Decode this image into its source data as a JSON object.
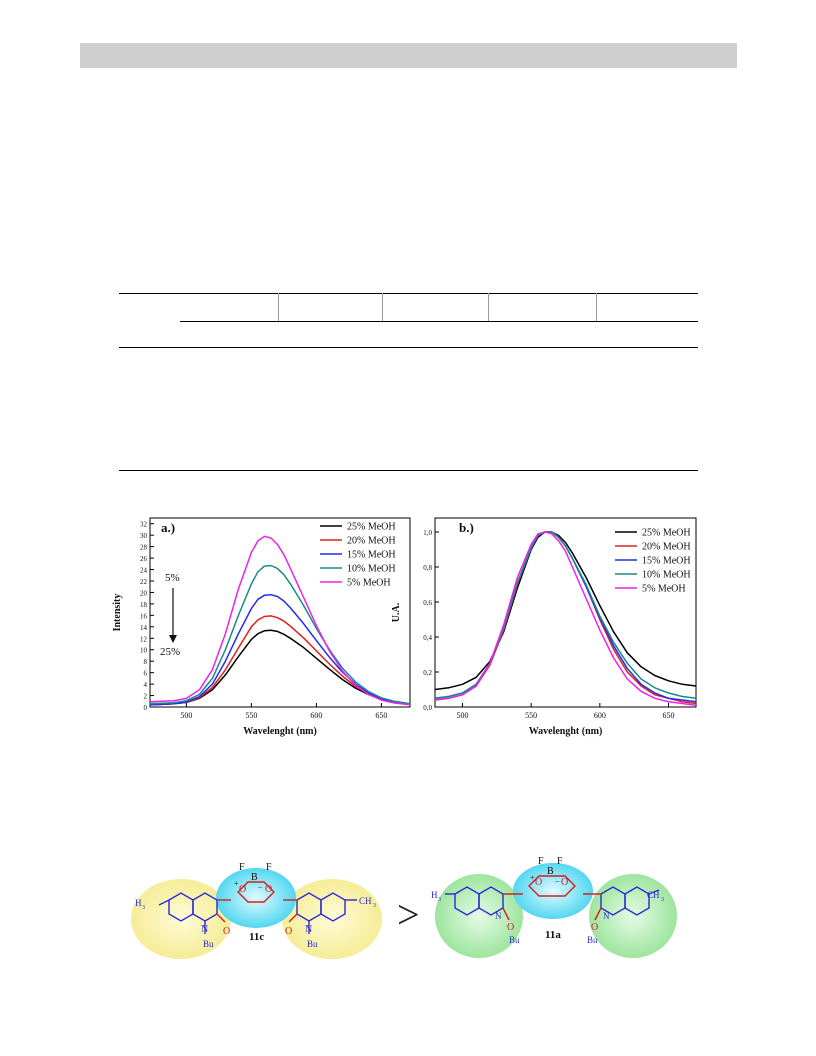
{
  "colors": {
    "header_bar": "#cfcfcf",
    "series": [
      "#000000",
      "#e0201c",
      "#1f2ef0",
      "#1a8a8a",
      "#f020f0"
    ]
  },
  "figure": {
    "panel_a_label": "a.)",
    "panel_b_label": "b.)",
    "arrow_top_label": "5%",
    "arrow_bottom_label": "25%",
    "structure_left_label": "11c",
    "structure_right_label": "11a",
    "comparison_symbol": ">",
    "atom_labels": {
      "F": "F",
      "B": "B",
      "O": "O",
      "N": "N",
      "Bu": "Bu",
      "H3C": "H",
      "CH3": "CH",
      "sub3": "3",
      "plus": "+",
      "minus": "−"
    }
  },
  "chart_data": [
    {
      "type": "line",
      "title": "a.)",
      "xlabel": "Wavelenght (nm)",
      "ylabel": "Intensity",
      "xlim": [
        472,
        672
      ],
      "ylim": [
        0,
        33
      ],
      "xticks": [
        500,
        550,
        600,
        650
      ],
      "yticks": [
        0,
        2,
        4,
        6,
        8,
        10,
        12,
        14,
        16,
        18,
        20,
        22,
        24,
        26,
        28,
        30,
        32
      ],
      "legend_position": "top-right",
      "x": [
        472,
        480,
        490,
        500,
        510,
        520,
        530,
        540,
        550,
        555,
        560,
        565,
        570,
        575,
        580,
        590,
        600,
        610,
        620,
        630,
        640,
        650,
        660,
        672
      ],
      "series": [
        {
          "name": "25% MeOH",
          "values": [
            0.4,
            0.45,
            0.55,
            0.8,
            1.5,
            3.0,
            5.6,
            8.8,
            11.8,
            12.8,
            13.3,
            13.4,
            13.2,
            12.7,
            12.0,
            10.4,
            8.5,
            6.6,
            4.8,
            3.3,
            2.2,
            1.4,
            0.9,
            0.5
          ]
        },
        {
          "name": "20% MeOH",
          "values": [
            0.4,
            0.45,
            0.55,
            0.8,
            1.6,
            3.4,
            6.5,
            10.3,
            14.0,
            15.2,
            15.8,
            15.9,
            15.6,
            15.0,
            14.1,
            12.1,
            9.8,
            7.5,
            5.4,
            3.6,
            2.3,
            1.4,
            0.9,
            0.5
          ]
        },
        {
          "name": "15% MeOH",
          "values": [
            0.4,
            0.45,
            0.55,
            0.85,
            1.8,
            4.0,
            8.0,
            12.8,
            17.2,
            18.8,
            19.5,
            19.6,
            19.3,
            18.5,
            17.3,
            14.6,
            11.6,
            8.7,
            6.1,
            4.0,
            2.5,
            1.5,
            0.9,
            0.5
          ]
        },
        {
          "name": "10% MeOH",
          "values": [
            0.6,
            0.65,
            0.75,
            1.1,
            2.2,
            5.0,
            10.0,
            16.0,
            21.5,
            23.6,
            24.6,
            24.7,
            24.2,
            23.1,
            21.5,
            17.8,
            13.7,
            10.0,
            6.8,
            4.4,
            2.7,
            1.6,
            1.0,
            0.6
          ]
        },
        {
          "name": "5% MeOH",
          "values": [
            0.9,
            1.0,
            1.1,
            1.5,
            3.0,
            6.5,
            12.8,
            20.6,
            27.0,
            29.0,
            29.8,
            29.5,
            28.4,
            26.6,
            24.2,
            19.2,
            14.2,
            9.8,
            6.3,
            3.8,
            2.2,
            1.2,
            0.7,
            0.4
          ]
        }
      ]
    },
    {
      "type": "line",
      "title": "b.)",
      "xlabel": "Wavelenght (nm)",
      "ylabel": "U.A.",
      "xlim": [
        480,
        670
      ],
      "ylim": [
        0,
        1.08
      ],
      "xticks": [
        500,
        550,
        600,
        650
      ],
      "yticks": [
        "0,0",
        "0,2",
        "0,4",
        "0,6",
        "0,8",
        "1,0"
      ],
      "legend_position": "top-right",
      "x": [
        480,
        490,
        500,
        510,
        520,
        530,
        540,
        550,
        555,
        560,
        565,
        570,
        575,
        580,
        590,
        600,
        610,
        620,
        630,
        640,
        650,
        660,
        670
      ],
      "series": [
        {
          "name": "25% MeOH",
          "values": [
            0.1,
            0.11,
            0.13,
            0.17,
            0.26,
            0.43,
            0.68,
            0.9,
            0.97,
            1.0,
            1.0,
            0.98,
            0.94,
            0.88,
            0.74,
            0.58,
            0.43,
            0.31,
            0.23,
            0.18,
            0.15,
            0.13,
            0.12
          ]
        },
        {
          "name": "20% MeOH",
          "values": [
            0.04,
            0.05,
            0.07,
            0.12,
            0.24,
            0.44,
            0.7,
            0.91,
            0.98,
            1.0,
            1.0,
            0.97,
            0.92,
            0.85,
            0.69,
            0.5,
            0.33,
            0.2,
            0.12,
            0.07,
            0.05,
            0.03,
            0.02
          ]
        },
        {
          "name": "15% MeOH",
          "values": [
            0.05,
            0.06,
            0.08,
            0.13,
            0.25,
            0.45,
            0.71,
            0.91,
            0.98,
            1.0,
            1.0,
            0.97,
            0.92,
            0.85,
            0.69,
            0.51,
            0.35,
            0.22,
            0.13,
            0.08,
            0.05,
            0.04,
            0.03
          ]
        },
        {
          "name": "10% MeOH",
          "values": [
            0.05,
            0.06,
            0.08,
            0.13,
            0.25,
            0.45,
            0.71,
            0.91,
            0.98,
            1.0,
            1.0,
            0.97,
            0.92,
            0.85,
            0.7,
            0.52,
            0.37,
            0.25,
            0.16,
            0.11,
            0.08,
            0.06,
            0.05
          ]
        },
        {
          "name": "5% MeOH",
          "values": [
            0.04,
            0.05,
            0.07,
            0.12,
            0.25,
            0.47,
            0.74,
            0.93,
            0.99,
            1.0,
            0.99,
            0.95,
            0.89,
            0.8,
            0.62,
            0.44,
            0.28,
            0.16,
            0.09,
            0.05,
            0.03,
            0.02,
            0.01
          ]
        }
      ]
    }
  ]
}
